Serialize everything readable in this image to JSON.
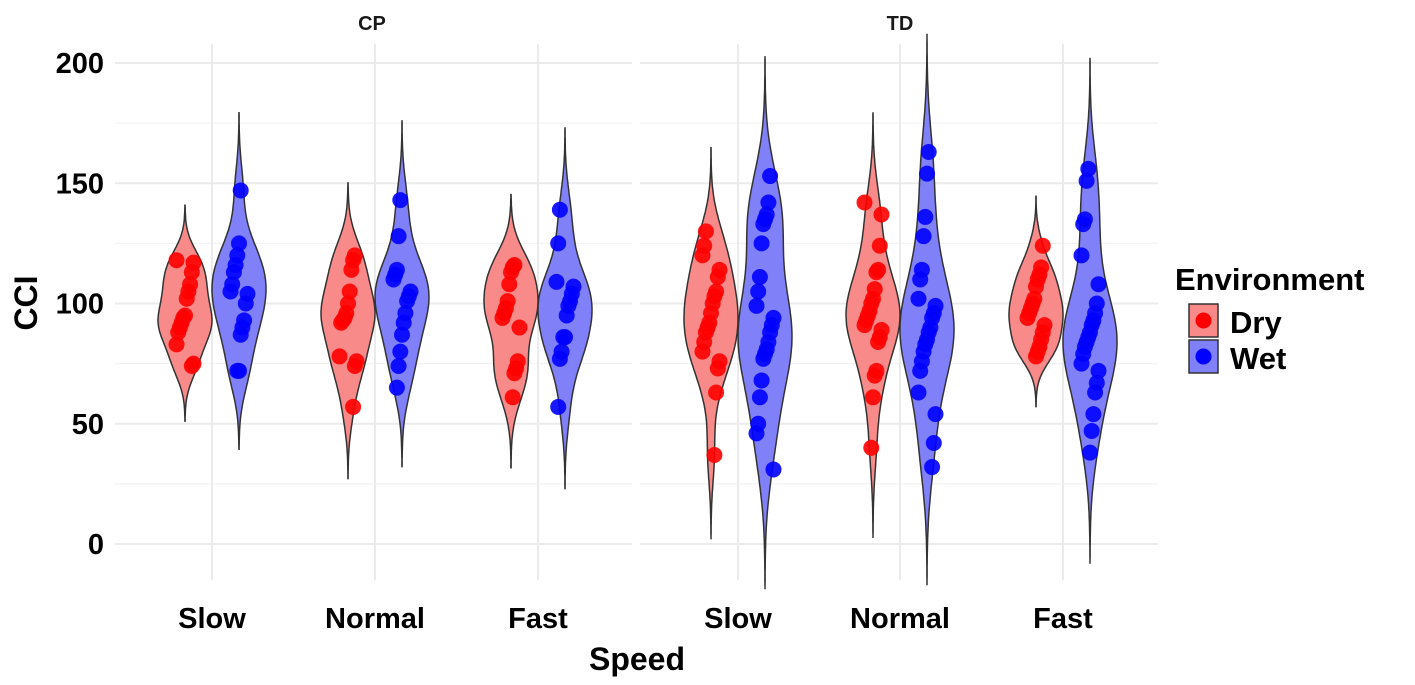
{
  "chart_data": {
    "type": "violin",
    "title": "",
    "xlabel": "Speed",
    "ylabel": "CCI",
    "ylim": [
      -15,
      208
    ],
    "yticks": [
      0,
      50,
      100,
      150,
      200
    ],
    "grid": true,
    "legend": {
      "title": "Environment",
      "position": "right"
    },
    "facets": [
      "CP",
      "TD"
    ],
    "categories": [
      "Slow",
      "Normal",
      "Fast"
    ],
    "series": [
      {
        "name": "Dry",
        "fill": "#f88a8a",
        "point": "#ff0000"
      },
      {
        "name": "Wet",
        "fill": "#8080f8",
        "point": "#0000ff"
      }
    ],
    "data": {
      "CP": {
        "Slow": {
          "Dry": [
            118,
            117,
            113,
            108,
            105,
            102,
            95,
            94,
            92,
            90,
            88,
            83,
            75,
            74
          ],
          "Wet": [
            147,
            125,
            120,
            116,
            113,
            108,
            105,
            104,
            100,
            93,
            90,
            87,
            72,
            72
          ]
        },
        "Normal": {
          "Dry": [
            120,
            118,
            114,
            105,
            100,
            96,
            94,
            93,
            92,
            78,
            76,
            74,
            57
          ],
          "Wet": [
            143,
            128,
            114,
            112,
            110,
            105,
            103,
            101,
            96,
            92,
            87,
            80,
            74,
            65
          ]
        },
        "Fast": {
          "Dry": [
            116,
            115,
            113,
            108,
            101,
            98,
            96,
            94,
            90,
            76,
            73,
            71,
            61
          ],
          "Wet": [
            139,
            125,
            109,
            107,
            104,
            101,
            99,
            95,
            86,
            86,
            80,
            77,
            57
          ]
        }
      },
      "TD": {
        "Slow": {
          "Dry": [
            130,
            124,
            120,
            114,
            111,
            105,
            103,
            100,
            96,
            92,
            90,
            88,
            84,
            80,
            76,
            73,
            63,
            37
          ],
          "Wet": [
            153,
            142,
            137,
            135,
            133,
            125,
            111,
            105,
            99,
            94,
            91,
            88,
            84,
            81,
            79,
            77,
            68,
            61,
            50,
            46,
            31
          ]
        },
        "Normal": {
          "Dry": [
            142,
            137,
            124,
            114,
            113,
            106,
            102,
            100,
            97,
            95,
            93,
            91,
            89,
            86,
            84,
            72,
            70,
            61,
            40
          ],
          "Wet": [
            163,
            154,
            136,
            128,
            114,
            110,
            102,
            99,
            96,
            94,
            90,
            88,
            85,
            83,
            80,
            76,
            72,
            63,
            54,
            42,
            32
          ]
        },
        "Fast": {
          "Dry": [
            124,
            115,
            112,
            110,
            107,
            102,
            100,
            98,
            96,
            94,
            91,
            88,
            85,
            82,
            80,
            78
          ],
          "Wet": [
            156,
            151,
            135,
            133,
            120,
            108,
            100,
            96,
            93,
            91,
            88,
            86,
            84,
            82,
            79,
            75,
            72,
            67,
            63,
            54,
            47,
            38
          ]
        }
      }
    }
  }
}
